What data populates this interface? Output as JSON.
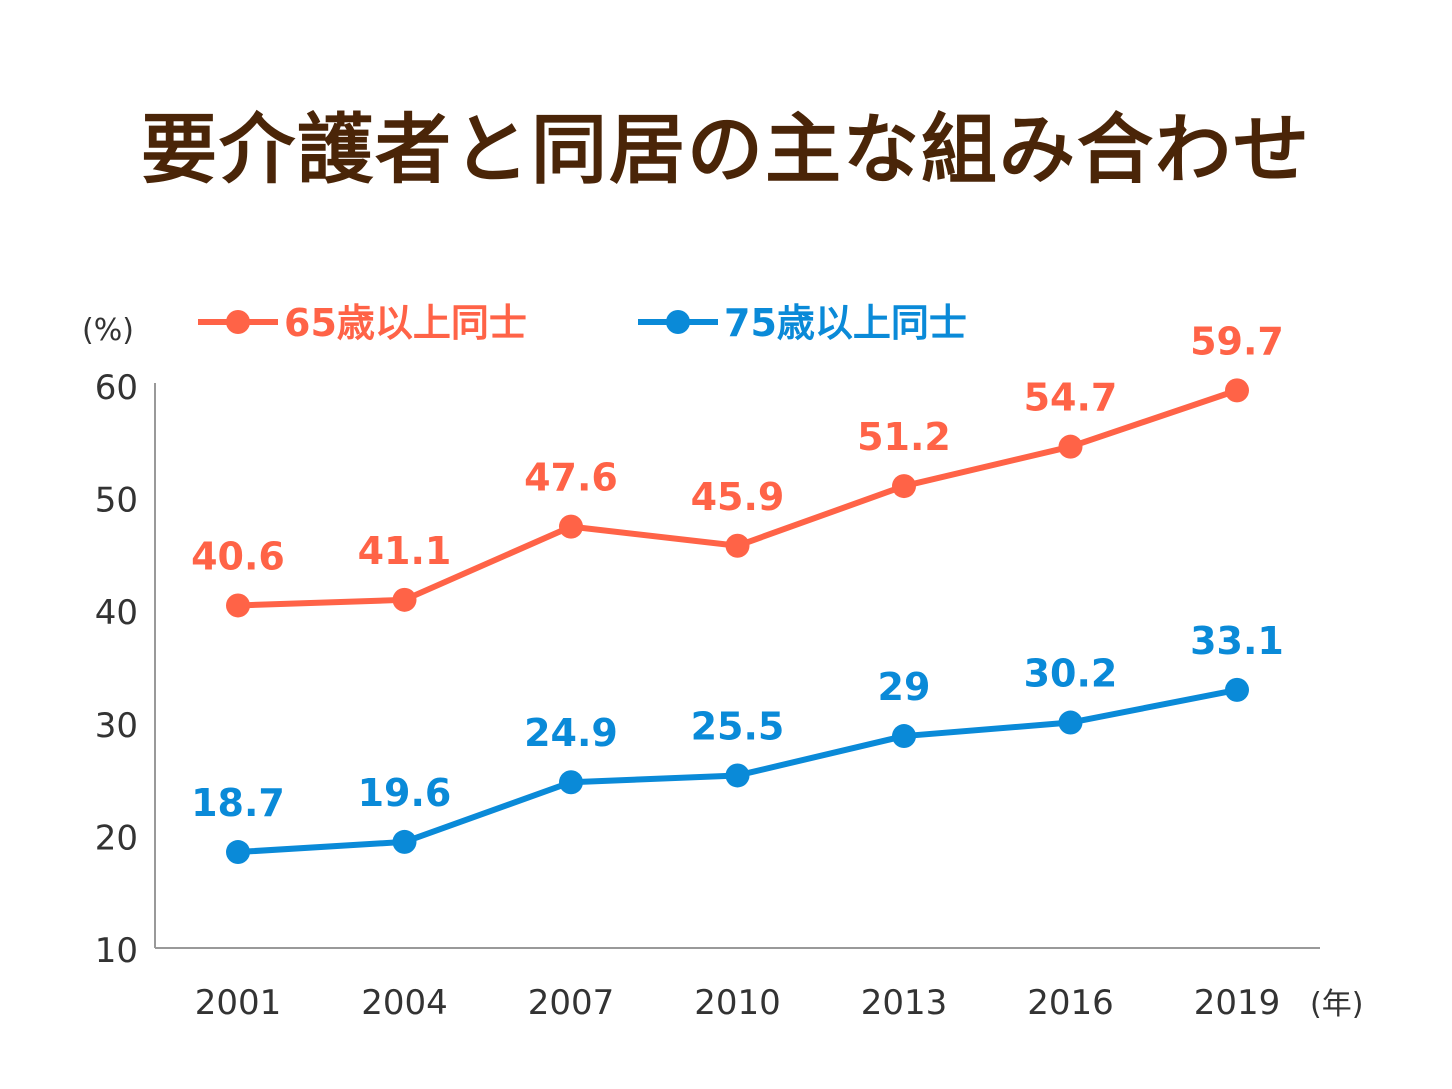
{
  "chart_data": {
    "type": "line",
    "title": "要介護者と同居の主な組み合わせ",
    "ylabel": "(%)",
    "xlabel": "(年)",
    "ylim": [
      10,
      60
    ],
    "yticks": [
      "10",
      "20",
      "30",
      "40",
      "50",
      "60"
    ],
    "categories": [
      "2001",
      "2004",
      "2007",
      "2010",
      "2013",
      "2016",
      "2019"
    ],
    "legend_position": "top",
    "grid": false,
    "series": [
      {
        "name": "65歳以上同士",
        "color": "#ff6347",
        "values": [
          40.6,
          41.1,
          47.6,
          45.9,
          51.2,
          54.7,
          59.7
        ],
        "labels": [
          "40.6",
          "41.1",
          "47.6",
          "45.9",
          "51.2",
          "54.7",
          "59.7"
        ]
      },
      {
        "name": "75歳以上同士",
        "color": "#0a8ad8",
        "values": [
          18.7,
          19.6,
          24.9,
          25.5,
          29,
          30.2,
          33.1
        ],
        "labels": [
          "18.7",
          "19.6",
          "24.9",
          "25.5",
          "29",
          "30.2",
          "33.1"
        ]
      }
    ]
  }
}
